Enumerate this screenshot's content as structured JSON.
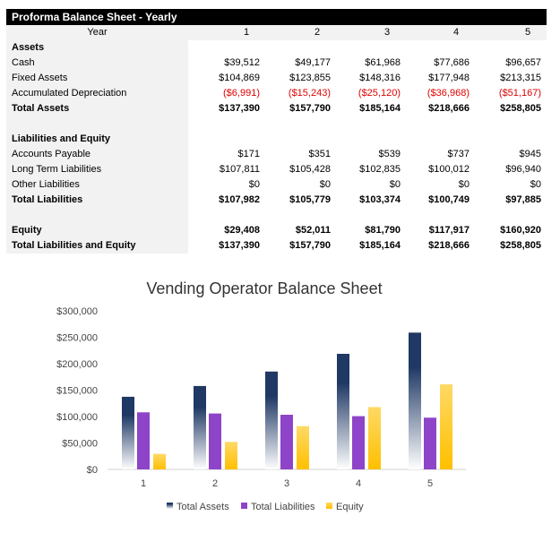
{
  "table": {
    "title": "Proforma Balance Sheet - Yearly",
    "year_label": "Year",
    "years": [
      "1",
      "2",
      "3",
      "4",
      "5"
    ],
    "rows": [
      {
        "label": "Assets",
        "values": [],
        "bold": true
      },
      {
        "label": "Cash",
        "values": [
          "$39,512",
          "$49,177",
          "$61,968",
          "$77,686",
          "$96,657"
        ]
      },
      {
        "label": "Fixed Assets",
        "values": [
          "$104,869",
          "$123,855",
          "$148,316",
          "$177,948",
          "$213,315"
        ]
      },
      {
        "label": "Accumulated Depreciation",
        "values": [
          "($6,991)",
          "($15,243)",
          "($25,120)",
          "($36,968)",
          "($51,167)"
        ],
        "negative": true
      },
      {
        "label": "Total Assets",
        "values": [
          "$137,390",
          "$157,790",
          "$185,164",
          "$218,666",
          "$258,805"
        ],
        "bold": true
      },
      {
        "label": "",
        "values": []
      },
      {
        "label": "Liabilities and Equity",
        "values": [],
        "bold": true
      },
      {
        "label": "Accounts Payable",
        "values": [
          "$171",
          "$351",
          "$539",
          "$737",
          "$945"
        ]
      },
      {
        "label": "Long Term Liabilities",
        "values": [
          "$107,811",
          "$105,428",
          "$102,835",
          "$100,012",
          "$96,940"
        ]
      },
      {
        "label": "Other Liabilities",
        "values": [
          "$0",
          "$0",
          "$0",
          "$0",
          "$0"
        ]
      },
      {
        "label": "Total Liabilities",
        "values": [
          "$107,982",
          "$105,779",
          "$103,374",
          "$100,749",
          "$97,885"
        ],
        "bold": true
      },
      {
        "label": "",
        "values": []
      },
      {
        "label": "Equity",
        "values": [
          "$29,408",
          "$52,011",
          "$81,790",
          "$117,917",
          "$160,920"
        ],
        "bold": true
      },
      {
        "label": "Total Liabilities and Equity",
        "values": [
          "$137,390",
          "$157,790",
          "$185,164",
          "$218,666",
          "$258,805"
        ],
        "bold": true
      }
    ],
    "negative_color": "#e00000"
  },
  "chart_data": {
    "type": "bar",
    "title": "Vending Operator Balance Sheet",
    "categories": [
      "1",
      "2",
      "3",
      "4",
      "5"
    ],
    "ylim": [
      0,
      300000
    ],
    "yticks": [
      "$0",
      "$50,000",
      "$100,000",
      "$150,000",
      "$200,000",
      "$250,000",
      "$300,000"
    ],
    "ytick_values": [
      0,
      50000,
      100000,
      150000,
      200000,
      250000,
      300000
    ],
    "grid": false,
    "legend": "bottom",
    "series": [
      {
        "name": "Total Assets",
        "values": [
          137390,
          157790,
          185164,
          218666,
          258805
        ],
        "color": "#1f3864"
      },
      {
        "name": "Total Liabilities",
        "values": [
          107982,
          105779,
          103374,
          100749,
          97885
        ],
        "color": "#8e44c8"
      },
      {
        "name": "Equity",
        "values": [
          29408,
          52011,
          81790,
          117917,
          160920
        ],
        "color": "#ffc000"
      }
    ]
  }
}
